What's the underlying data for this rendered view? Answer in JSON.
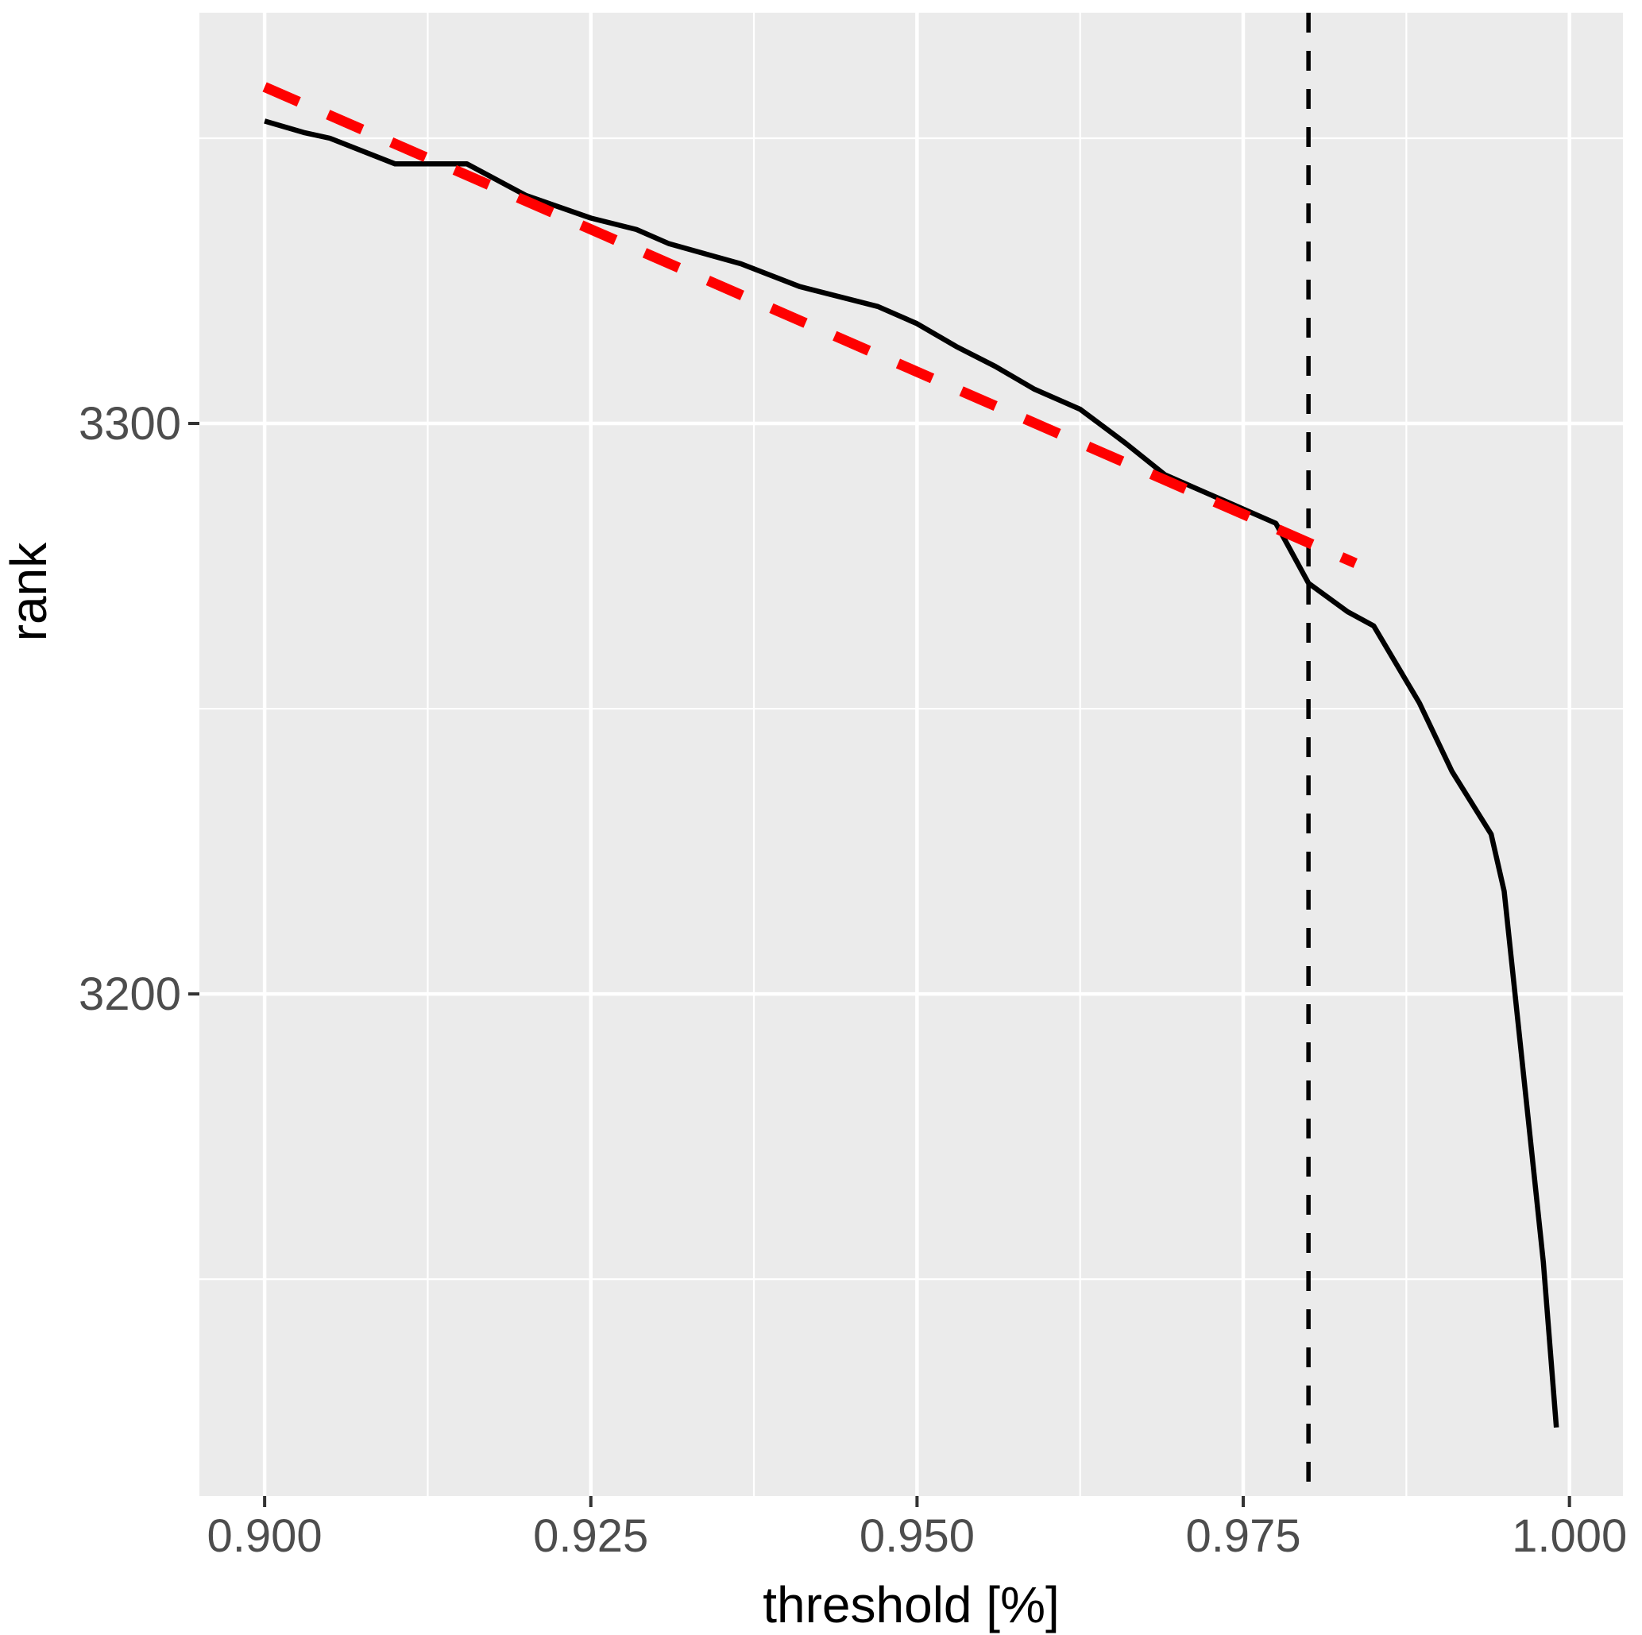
{
  "chart_data": {
    "type": "line",
    "title": "",
    "xlabel": "threshold [%]",
    "ylabel": "rank",
    "xlim": [
      0.895,
      1.0041
    ],
    "ylim": [
      3112,
      3372
    ],
    "x_ticks": [
      0.9,
      0.925,
      0.95,
      0.975,
      1.0
    ],
    "x_tick_labels": [
      "0.900",
      "0.925",
      "0.950",
      "0.975",
      "1.000"
    ],
    "x_minor_ticks": [
      0.9125,
      0.9375,
      0.9625,
      0.9875
    ],
    "y_ticks": [
      3300,
      3200
    ],
    "y_tick_labels": [
      "3300",
      "3200"
    ],
    "y_minor_ticks": [
      3350,
      3250,
      3150
    ],
    "grid": "on",
    "legend": "none",
    "panel_bg": "#EBEBEB",
    "grid_color": "#FFFFFF",
    "tick_color": "#333333",
    "tick_label_color": "#4D4D4D",
    "axis_title_color": "#000000",
    "series": [
      {
        "name": "rank-vs-threshold",
        "style": "solid",
        "color": "#000000",
        "width": 6.5,
        "points": [
          [
            0.9,
            3353
          ],
          [
            0.903,
            3351
          ],
          [
            0.905,
            3350
          ],
          [
            0.91,
            3345.5
          ],
          [
            0.9155,
            3345.5
          ],
          [
            0.92,
            3340
          ],
          [
            0.925,
            3336
          ],
          [
            0.9285,
            3334
          ],
          [
            0.931,
            3331.5
          ],
          [
            0.9365,
            3328
          ],
          [
            0.941,
            3324
          ],
          [
            0.947,
            3320.5
          ],
          [
            0.95,
            3317.5
          ],
          [
            0.953,
            3313.5
          ],
          [
            0.956,
            3310
          ],
          [
            0.959,
            3306
          ],
          [
            0.9625,
            3302.5
          ],
          [
            0.966,
            3296.5
          ],
          [
            0.969,
            3291
          ],
          [
            0.972,
            3288
          ],
          [
            0.975,
            3285
          ],
          [
            0.9775,
            3282.5
          ],
          [
            0.98,
            3272
          ],
          [
            0.983,
            3267
          ],
          [
            0.985,
            3264.5
          ],
          [
            0.9885,
            3251
          ],
          [
            0.991,
            3239
          ],
          [
            0.994,
            3228
          ],
          [
            0.995,
            3218
          ],
          [
            0.998,
            3153
          ],
          [
            0.999,
            3124
          ]
        ]
      },
      {
        "name": "linear-reference",
        "style": "dashed",
        "color": "#FF0000",
        "width": 13,
        "dash": [
          47,
          40
        ],
        "points": [
          [
            0.9,
            3359
          ],
          [
            0.9836,
            3275.5
          ]
        ]
      }
    ],
    "vline": {
      "name": "threshold-cutoff",
      "x": 0.98,
      "style": "dashed",
      "color": "#000000",
      "width": 5.5,
      "dash": [
        25,
        23
      ]
    }
  }
}
